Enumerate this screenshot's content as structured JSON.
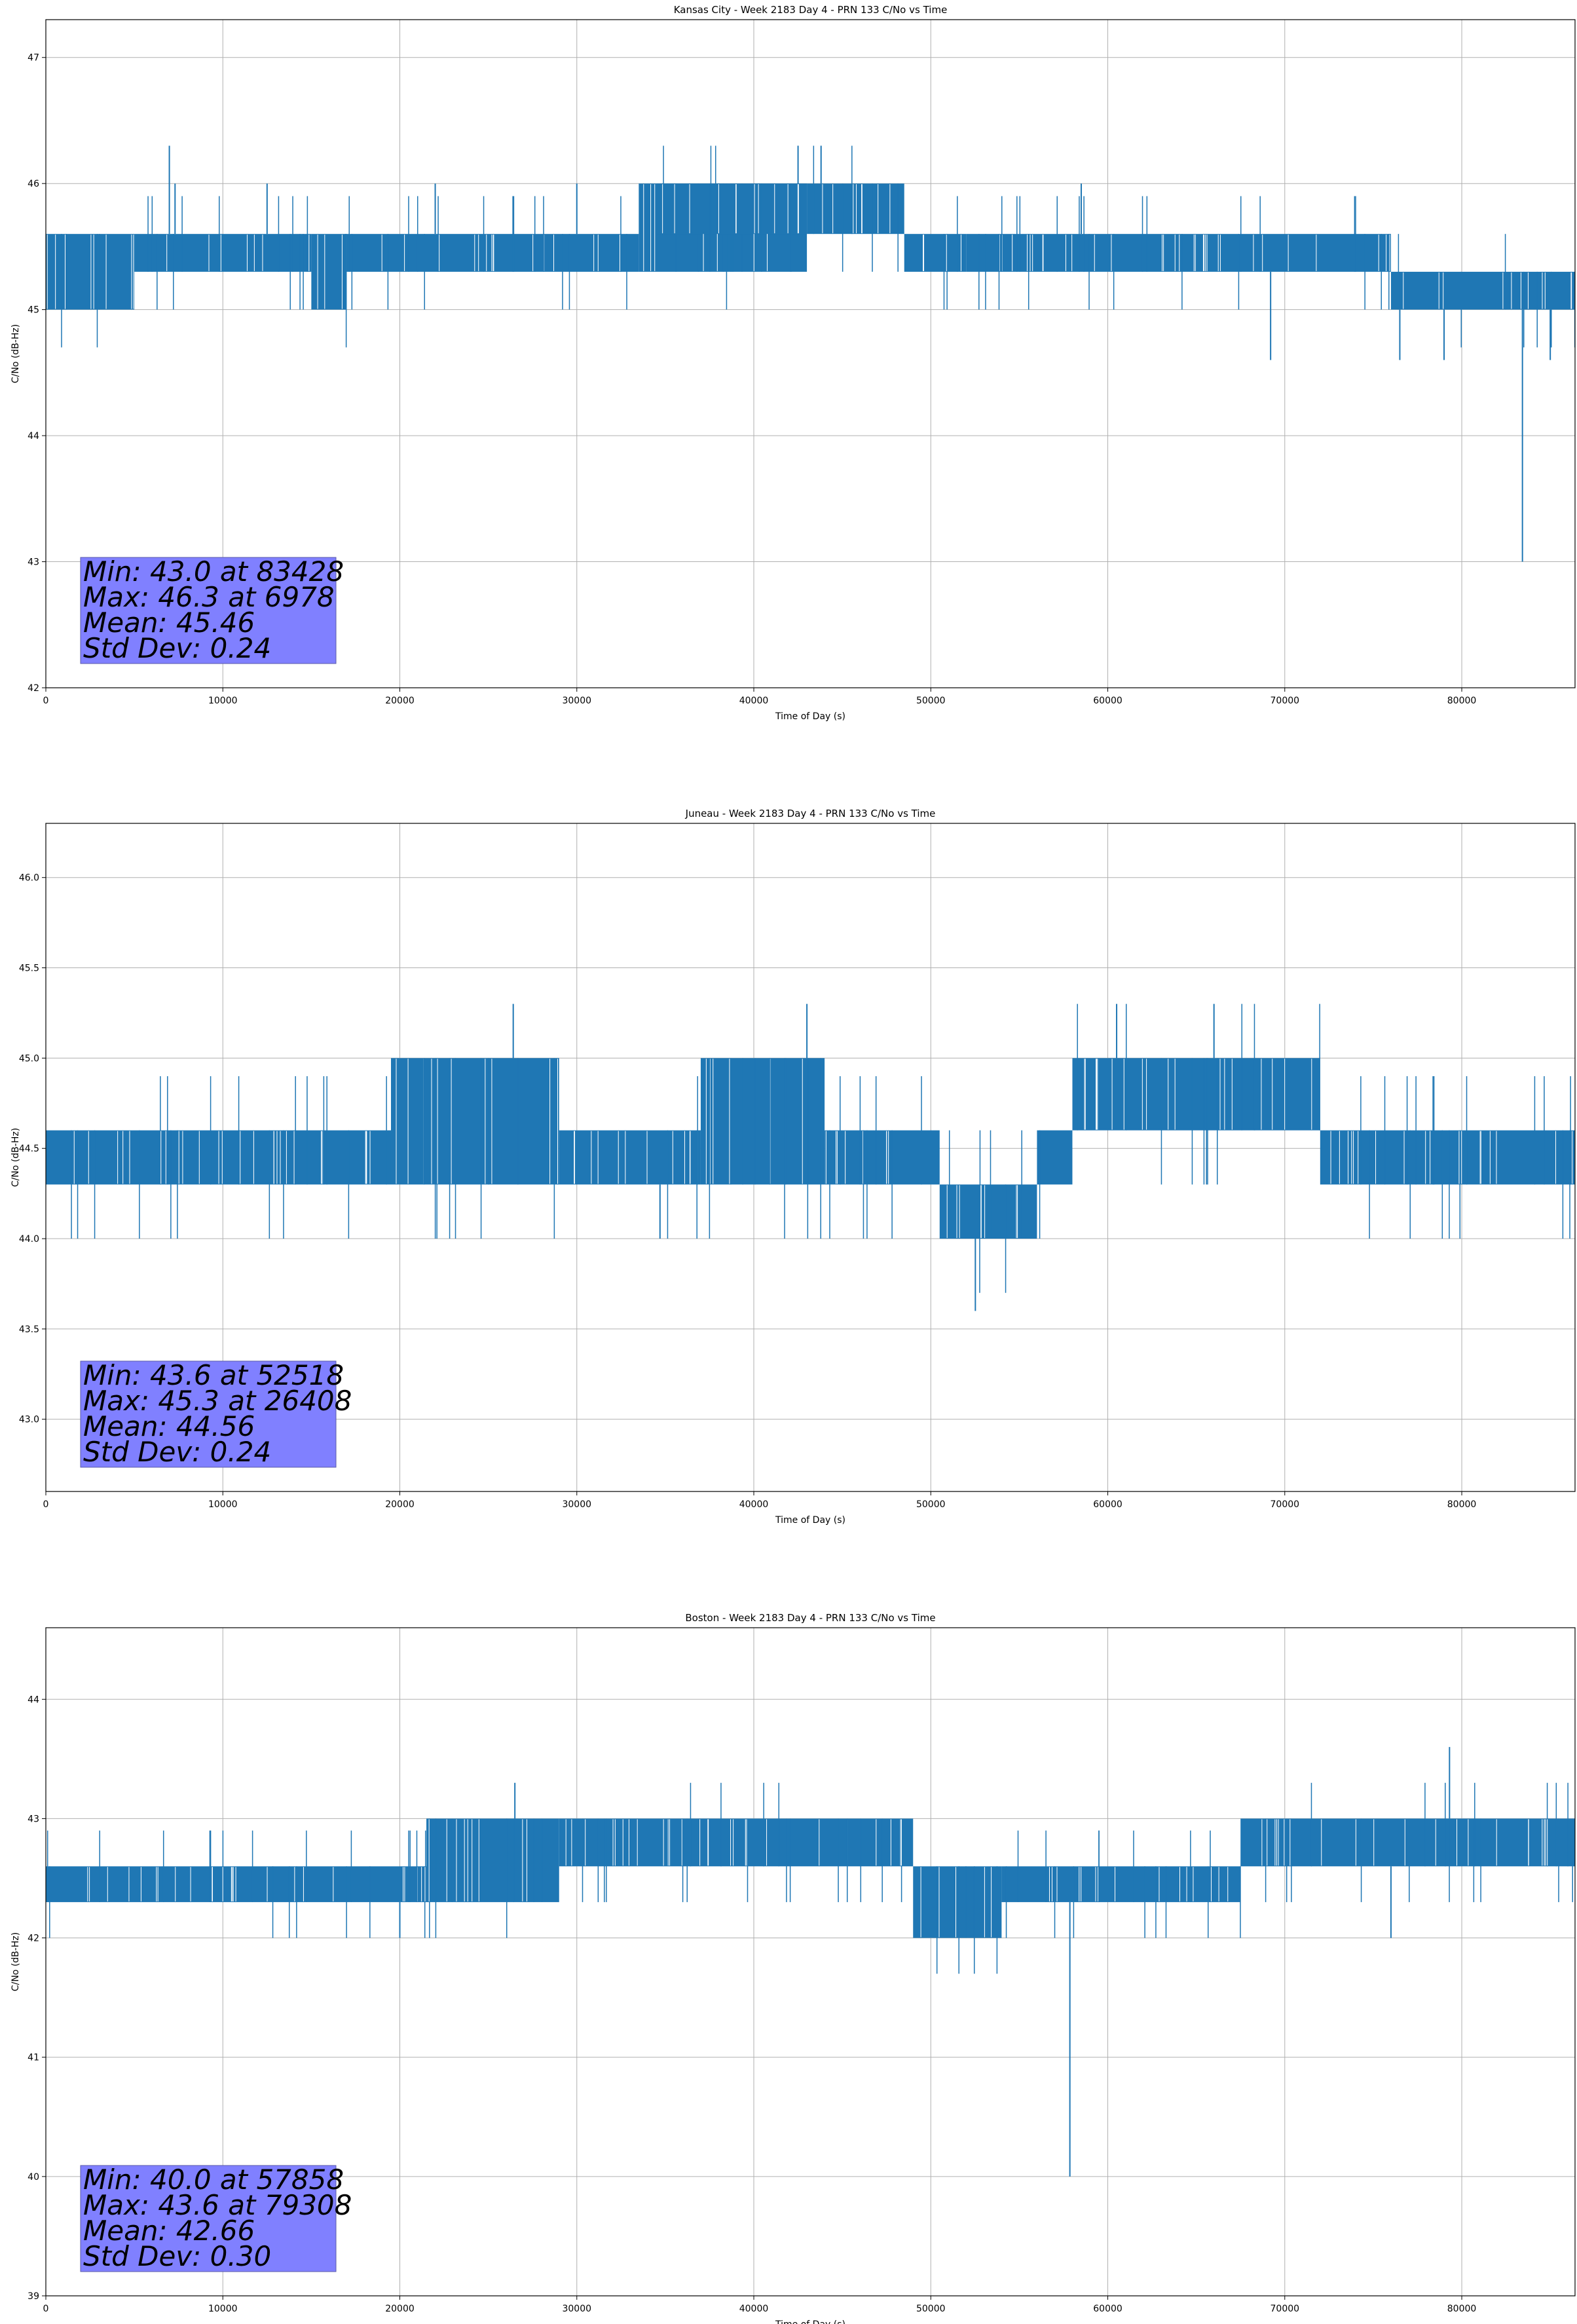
{
  "chart_data": [
    {
      "type": "line",
      "title": "Kansas City - Week 2183 Day 4 - PRN 133 C/No vs Time",
      "xlabel": "Time of Day (s)",
      "ylabel": "C/No (dB-Hz)",
      "xlim": [
        0,
        86400
      ],
      "ylim": [
        42,
        47.3
      ],
      "xticks": [
        0,
        10000,
        20000,
        30000,
        40000,
        50000,
        60000,
        70000,
        80000
      ],
      "yticks": [
        42,
        43,
        44,
        45,
        46,
        47
      ],
      "ytick_labels": [
        "42",
        "43",
        "44",
        "45",
        "46",
        "47"
      ],
      "grid": true,
      "color": "#1f77b4",
      "segments": [
        {
          "x": [
            0,
            5000
          ],
          "lo": 45.0,
          "hi": 45.6
        },
        {
          "x": [
            5000,
            15000
          ],
          "lo": 45.3,
          "hi": 45.6
        },
        {
          "x": [
            15000,
            17000
          ],
          "lo": 45.0,
          "hi": 45.6
        },
        {
          "x": [
            17000,
            33500
          ],
          "lo": 45.3,
          "hi": 45.6
        },
        {
          "x": [
            33500,
            43000
          ],
          "lo": 45.3,
          "hi": 46.0
        },
        {
          "x": [
            34500,
            43000
          ],
          "lo": 45.6,
          "hi": 46.0
        },
        {
          "x": [
            43000,
            48500
          ],
          "lo": 45.6,
          "hi": 46.0
        },
        {
          "x": [
            48500,
            52000
          ],
          "lo": 45.3,
          "hi": 45.6
        },
        {
          "x": [
            52000,
            76000
          ],
          "lo": 45.3,
          "hi": 45.6
        },
        {
          "x": [
            76000,
            86400
          ],
          "lo": 45.0,
          "hi": 45.3
        }
      ],
      "spikes": [
        {
          "x": 6978,
          "lo": 45.6,
          "hi": 46.3
        },
        {
          "x": 7300,
          "lo": 45.6,
          "hi": 46.0
        },
        {
          "x": 12500,
          "lo": 45.6,
          "hi": 46.0
        },
        {
          "x": 22000,
          "lo": 45.6,
          "hi": 46.0
        },
        {
          "x": 30000,
          "lo": 45.6,
          "hi": 46.0
        },
        {
          "x": 42500,
          "lo": 46.0,
          "hi": 46.3
        },
        {
          "x": 43800,
          "lo": 46.0,
          "hi": 46.3
        },
        {
          "x": 58500,
          "lo": 45.6,
          "hi": 46.0
        },
        {
          "x": 69200,
          "lo": 44.6,
          "hi": 45.3
        },
        {
          "x": 76500,
          "lo": 44.6,
          "hi": 45.0
        },
        {
          "x": 79000,
          "lo": 44.6,
          "hi": 45.0
        },
        {
          "x": 83428,
          "lo": 43.0,
          "hi": 45.0
        },
        {
          "x": 85000,
          "lo": 44.6,
          "hi": 45.0
        }
      ],
      "stats": {
        "min": "Min: 43.0 at 83428",
        "max": "Max: 46.3 at 6978",
        "mean": "Mean: 45.46",
        "std": "Std Dev: 0.24"
      }
    },
    {
      "type": "line",
      "title": "Juneau - Week 2183 Day 4 - PRN 133 C/No vs Time",
      "xlabel": "Time of Day (s)",
      "ylabel": "C/No (dB-Hz)",
      "xlim": [
        0,
        86400
      ],
      "ylim": [
        42.6,
        46.3
      ],
      "xticks": [
        0,
        10000,
        20000,
        30000,
        40000,
        50000,
        60000,
        70000,
        80000
      ],
      "yticks": [
        43.0,
        43.5,
        44.0,
        44.5,
        45.0,
        45.5,
        46.0
      ],
      "ytick_labels": [
        "43.0",
        "43.5",
        "44.0",
        "44.5",
        "45.0",
        "45.5",
        "46.0"
      ],
      "grid": true,
      "color": "#1f77b4",
      "segments": [
        {
          "x": [
            0,
            19500
          ],
          "lo": 44.3,
          "hi": 44.6
        },
        {
          "x": [
            19500,
            29000
          ],
          "lo": 44.3,
          "hi": 45.0
        },
        {
          "x": [
            29000,
            37000
          ],
          "lo": 44.3,
          "hi": 44.6
        },
        {
          "x": [
            37000,
            44000
          ],
          "lo": 44.3,
          "hi": 45.0
        },
        {
          "x": [
            44000,
            50500
          ],
          "lo": 44.3,
          "hi": 44.6
        },
        {
          "x": [
            50500,
            56000
          ],
          "lo": 44.0,
          "hi": 44.3
        },
        {
          "x": [
            56000,
            58000
          ],
          "lo": 44.3,
          "hi": 44.6
        },
        {
          "x": [
            58000,
            72000
          ],
          "lo": 44.6,
          "hi": 45.0
        },
        {
          "x": [
            72000,
            86400
          ],
          "lo": 44.3,
          "hi": 44.6
        }
      ],
      "spikes": [
        {
          "x": 26408,
          "lo": 45.0,
          "hi": 45.3
        },
        {
          "x": 43000,
          "lo": 45.0,
          "hi": 45.3
        },
        {
          "x": 60500,
          "lo": 45.0,
          "hi": 45.3
        },
        {
          "x": 66000,
          "lo": 45.0,
          "hi": 45.3
        },
        {
          "x": 34700,
          "lo": 44.0,
          "hi": 44.3
        },
        {
          "x": 52518,
          "lo": 43.6,
          "hi": 44.0
        }
      ],
      "stats": {
        "min": "Min: 43.6 at 52518",
        "max": "Max: 45.3 at 26408",
        "mean": "Mean: 44.56",
        "std": "Std Dev: 0.24"
      }
    },
    {
      "type": "line",
      "title": "Boston - Week 2183 Day 4 - PRN 133 C/No vs Time",
      "xlabel": "Time of Day (s)",
      "ylabel": "C/No (dB-Hz)",
      "xlim": [
        0,
        86400
      ],
      "ylim": [
        39,
        44.6
      ],
      "xticks": [
        0,
        10000,
        20000,
        30000,
        40000,
        50000,
        60000,
        70000,
        80000
      ],
      "yticks": [
        39,
        40,
        41,
        42,
        43,
        44
      ],
      "ytick_labels": [
        "39",
        "40",
        "41",
        "42",
        "43",
        "44"
      ],
      "grid": true,
      "color": "#1f77b4",
      "segments": [
        {
          "x": [
            0,
            21500
          ],
          "lo": 42.3,
          "hi": 42.6
        },
        {
          "x": [
            21500,
            29000
          ],
          "lo": 42.3,
          "hi": 43.0
        },
        {
          "x": [
            29000,
            49000
          ],
          "lo": 42.6,
          "hi": 43.0
        },
        {
          "x": [
            49000,
            54000
          ],
          "lo": 42.0,
          "hi": 42.6
        },
        {
          "x": [
            54000,
            67500
          ],
          "lo": 42.3,
          "hi": 42.6
        },
        {
          "x": [
            67500,
            86400
          ],
          "lo": 42.6,
          "hi": 43.0
        }
      ],
      "spikes": [
        {
          "x": 26500,
          "lo": 43.0,
          "hi": 43.3
        },
        {
          "x": 20000,
          "lo": 42.0,
          "hi": 42.3
        },
        {
          "x": 57858,
          "lo": 40.0,
          "hi": 42.3
        },
        {
          "x": 79308,
          "lo": 43.0,
          "hi": 43.6
        },
        {
          "x": 76000,
          "lo": 42.0,
          "hi": 42.6
        }
      ],
      "stats": {
        "min": "Min: 40.0 at 57858",
        "max": "Max: 43.6 at 79308",
        "mean": "Mean: 42.66",
        "std": "Std Dev: 0.30"
      }
    }
  ]
}
